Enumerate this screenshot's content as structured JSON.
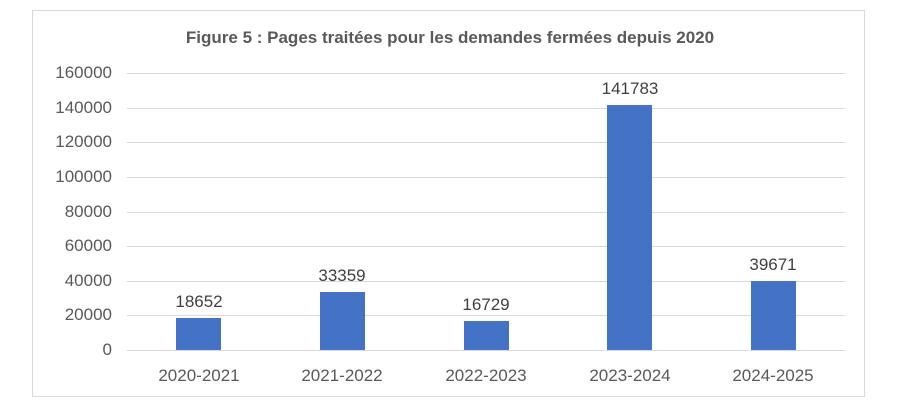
{
  "chart_data": {
    "type": "bar",
    "title": "Figure 5 : Pages traitées pour les demandes fermées depuis 2020",
    "categories": [
      "2020-2021",
      "2021-2022",
      "2022-2023",
      "2023-2024",
      "2024-2025"
    ],
    "values": [
      18652,
      33359,
      16729,
      141783,
      39671
    ],
    "data_labels": [
      "18652",
      "33359",
      "16729",
      "141783",
      "39671"
    ],
    "xlabel": "",
    "ylabel": "",
    "ylim": [
      0,
      160000
    ],
    "yticks": [
      "0",
      "20000",
      "40000",
      "60000",
      "80000",
      "100000",
      "120000",
      "140000",
      "160000"
    ],
    "grid": true,
    "legend": "none",
    "bar_color": "#4472c4"
  }
}
